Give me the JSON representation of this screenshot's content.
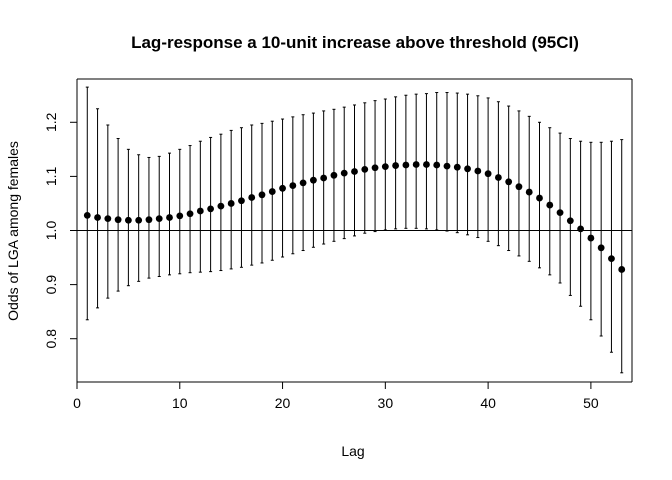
{
  "chart_data": {
    "type": "scatter",
    "title": "Lag-response a 10-unit increase above threshold (95CI)",
    "xlabel": "Lag",
    "ylabel": "Odds of LGA among females",
    "xlim": [
      0,
      54
    ],
    "ylim": [
      0.72,
      1.28
    ],
    "xticks": [
      0,
      10,
      20,
      30,
      40,
      50
    ],
    "yticks": [
      0.8,
      0.9,
      1.0,
      1.1,
      1.2
    ],
    "ytick_labels": [
      "0.8",
      "0.9",
      "1.0",
      "1.1",
      "1.2"
    ],
    "reference_line": 1.0,
    "grid": false,
    "legend": "none",
    "lags": [
      1,
      2,
      3,
      4,
      5,
      6,
      7,
      8,
      9,
      10,
      11,
      12,
      13,
      14,
      15,
      16,
      17,
      18,
      19,
      20,
      21,
      22,
      23,
      24,
      25,
      26,
      27,
      28,
      29,
      30,
      31,
      32,
      33,
      34,
      35,
      36,
      37,
      38,
      39,
      40,
      41,
      42,
      43,
      44,
      45,
      46,
      47,
      48,
      49,
      50,
      51,
      52,
      53
    ],
    "estimate": [
      1.028,
      1.024,
      1.022,
      1.02,
      1.019,
      1.019,
      1.02,
      1.022,
      1.024,
      1.027,
      1.031,
      1.036,
      1.04,
      1.045,
      1.05,
      1.055,
      1.061,
      1.066,
      1.072,
      1.078,
      1.083,
      1.088,
      1.093,
      1.097,
      1.102,
      1.106,
      1.109,
      1.113,
      1.116,
      1.118,
      1.12,
      1.121,
      1.122,
      1.122,
      1.121,
      1.119,
      1.117,
      1.114,
      1.11,
      1.105,
      1.098,
      1.09,
      1.081,
      1.071,
      1.06,
      1.047,
      1.033,
      1.018,
      1.003,
      0.986,
      0.968,
      0.948,
      0.928
    ],
    "lower": [
      0.835,
      0.857,
      0.875,
      0.888,
      0.898,
      0.906,
      0.912,
      0.915,
      0.918,
      0.92,
      0.922,
      0.923,
      0.924,
      0.926,
      0.929,
      0.932,
      0.936,
      0.94,
      0.945,
      0.951,
      0.957,
      0.963,
      0.969,
      0.975,
      0.98,
      0.985,
      0.99,
      0.995,
      0.998,
      1.001,
      1.003,
      1.004,
      1.004,
      1.003,
      1.001,
      0.999,
      0.996,
      0.992,
      0.987,
      0.98,
      0.972,
      0.963,
      0.953,
      0.943,
      0.931,
      0.918,
      0.903,
      0.88,
      0.86,
      0.835,
      0.805,
      0.775,
      0.737
    ],
    "upper": [
      1.265,
      1.225,
      1.195,
      1.17,
      1.15,
      1.14,
      1.135,
      1.137,
      1.143,
      1.15,
      1.157,
      1.165,
      1.172,
      1.178,
      1.185,
      1.19,
      1.195,
      1.198,
      1.202,
      1.206,
      1.21,
      1.214,
      1.217,
      1.221,
      1.224,
      1.228,
      1.232,
      1.236,
      1.24,
      1.243,
      1.247,
      1.25,
      1.252,
      1.253,
      1.255,
      1.255,
      1.254,
      1.252,
      1.249,
      1.245,
      1.238,
      1.23,
      1.221,
      1.211,
      1.2,
      1.19,
      1.18,
      1.17,
      1.165,
      1.163,
      1.163,
      1.165,
      1.168
    ]
  }
}
